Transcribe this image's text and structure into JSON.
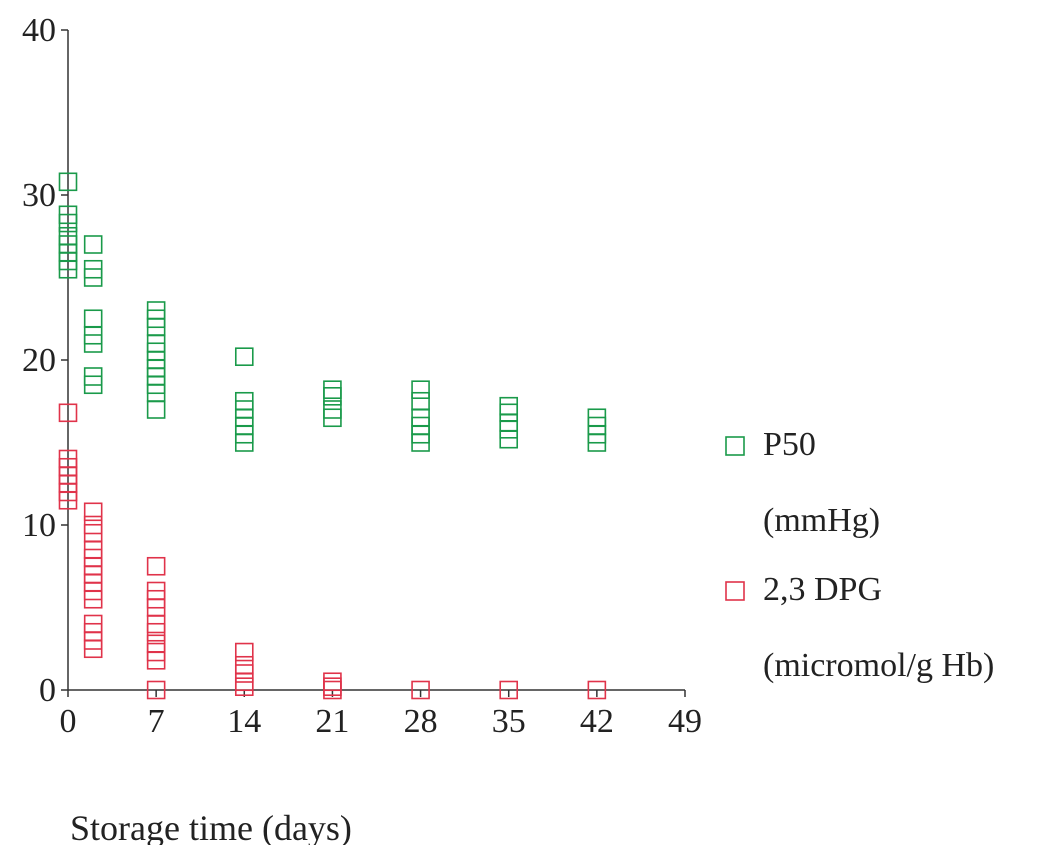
{
  "chart_data": {
    "type": "scatter",
    "xlabel": "Storage time (days)",
    "ylabel": "",
    "xlim": [
      0,
      49
    ],
    "ylim": [
      0,
      40
    ],
    "x_ticks": [
      "0",
      "7",
      "14",
      "21",
      "28",
      "35",
      "42",
      "49"
    ],
    "y_ticks": [
      "0",
      "10",
      "20",
      "30",
      "40"
    ],
    "grid": false,
    "legend_position": "right",
    "marker": "open-square",
    "series": [
      {
        "name": "P50",
        "unit": "(mmHg)",
        "color": "#1a9a4a",
        "points": [
          [
            0,
            30.8
          ],
          [
            0,
            28.8
          ],
          [
            0,
            28.3
          ],
          [
            0,
            27.5
          ],
          [
            0,
            27.0
          ],
          [
            0,
            26.5
          ],
          [
            0,
            26.0
          ],
          [
            0,
            25.5
          ],
          [
            2,
            27.0
          ],
          [
            2,
            25.5
          ],
          [
            2,
            25.0
          ],
          [
            2,
            22.5
          ],
          [
            2,
            21.5
          ],
          [
            2,
            21.0
          ],
          [
            2,
            19.0
          ],
          [
            2,
            18.5
          ],
          [
            7,
            23.0
          ],
          [
            7,
            22.5
          ],
          [
            7,
            22.0
          ],
          [
            7,
            21.0
          ],
          [
            7,
            20.5
          ],
          [
            7,
            20.0
          ],
          [
            7,
            19.5
          ],
          [
            7,
            19.0
          ],
          [
            7,
            18.5
          ],
          [
            7,
            18.0
          ],
          [
            7,
            17.0
          ],
          [
            14,
            20.2
          ],
          [
            14,
            17.5
          ],
          [
            14,
            17.0
          ],
          [
            14,
            16.5
          ],
          [
            14,
            16.0
          ],
          [
            14,
            15.5
          ],
          [
            14,
            15.0
          ],
          [
            21,
            18.2
          ],
          [
            21,
            17.8
          ],
          [
            21,
            17.0
          ],
          [
            21,
            16.5
          ],
          [
            28,
            18.2
          ],
          [
            28,
            17.5
          ],
          [
            28,
            16.5
          ],
          [
            28,
            16.0
          ],
          [
            28,
            15.5
          ],
          [
            28,
            15.0
          ],
          [
            35,
            17.2
          ],
          [
            35,
            16.8
          ],
          [
            35,
            16.2
          ],
          [
            35,
            15.8
          ],
          [
            35,
            15.2
          ],
          [
            42,
            16.5
          ],
          [
            42,
            16.0
          ],
          [
            42,
            15.5
          ],
          [
            42,
            15.0
          ]
        ]
      },
      {
        "name": "2,3 DPG",
        "unit": "(micromol/g Hb)",
        "color": "#e0334a",
        "points": [
          [
            0,
            16.8
          ],
          [
            0,
            14.0
          ],
          [
            0,
            13.5
          ],
          [
            0,
            13.0
          ],
          [
            0,
            12.5
          ],
          [
            0,
            12.0
          ],
          [
            0,
            11.5
          ],
          [
            2,
            10.8
          ],
          [
            2,
            10.0
          ],
          [
            2,
            9.5
          ],
          [
            2,
            8.5
          ],
          [
            2,
            8.0
          ],
          [
            2,
            7.5
          ],
          [
            2,
            7.0
          ],
          [
            2,
            6.5
          ],
          [
            2,
            6.0
          ],
          [
            2,
            5.5
          ],
          [
            2,
            4.0
          ],
          [
            2,
            3.5
          ],
          [
            2,
            3.0
          ],
          [
            2,
            2.5
          ],
          [
            7,
            7.5
          ],
          [
            7,
            6.0
          ],
          [
            7,
            5.5
          ],
          [
            7,
            5.0
          ],
          [
            7,
            4.0
          ],
          [
            7,
            3.5
          ],
          [
            7,
            2.8
          ],
          [
            7,
            2.3
          ],
          [
            7,
            1.8
          ],
          [
            7,
            0.0
          ],
          [
            14,
            2.3
          ],
          [
            14,
            1.5
          ],
          [
            14,
            1.0
          ],
          [
            14,
            0.5
          ],
          [
            14,
            0.2
          ],
          [
            21,
            0.5
          ],
          [
            21,
            0.2
          ],
          [
            21,
            0.0
          ],
          [
            28,
            0.0
          ],
          [
            35,
            0.0
          ],
          [
            42,
            0.0
          ]
        ]
      }
    ]
  }
}
